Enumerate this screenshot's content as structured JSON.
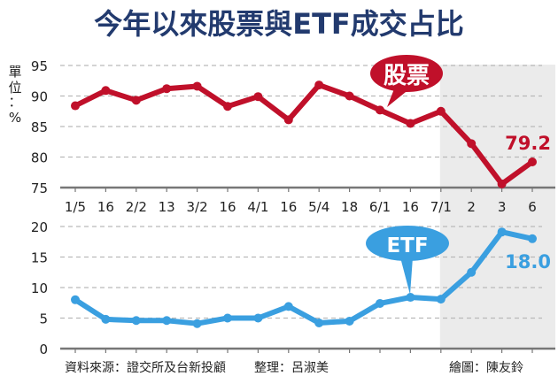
{
  "title": "今年以來股票與ETF成交占比",
  "unit": [
    "單",
    "位",
    "：",
    "%"
  ],
  "colors": {
    "stock": "#c0102a",
    "etf": "#3a9fe0",
    "title": "#223a6e",
    "shade": "#ebebeb",
    "grid": "#b9b9b9",
    "axis": "#777777"
  },
  "chart_data": [
    {
      "type": "line",
      "title": "股票",
      "ylabel": "單位：%",
      "ylim": [
        75,
        95
      ],
      "yticks": [
        75,
        80,
        85,
        90,
        95
      ],
      "categories": [
        "1/5",
        "16",
        "2/2",
        "13",
        "3/2",
        "16",
        "4/1",
        "16",
        "5/4",
        "18",
        "6/1",
        "16",
        "7/1",
        "2",
        "3",
        "6"
      ],
      "series": [
        {
          "name": "股票",
          "values": [
            88.4,
            90.9,
            89.3,
            91.2,
            91.6,
            88.3,
            89.9,
            86.1,
            91.8,
            90.0,
            87.7,
            85.5,
            87.5,
            82.2,
            75.6,
            79.2
          ]
        }
      ],
      "annotations": [
        {
          "text": "79.2",
          "at": "6"
        }
      ],
      "callout": "股票",
      "grid": true,
      "highlight_range": [
        "7/1",
        "6"
      ]
    },
    {
      "type": "line",
      "title": "ETF",
      "ylabel": "單位：%",
      "ylim": [
        0,
        20
      ],
      "yticks": [
        0,
        5,
        10,
        15,
        20
      ],
      "categories": [
        "1/5",
        "16",
        "2/2",
        "13",
        "3/2",
        "16",
        "4/1",
        "16",
        "5/4",
        "18",
        "6/1",
        "16",
        "7/1",
        "2",
        "3",
        "6"
      ],
      "series": [
        {
          "name": "ETF",
          "values": [
            8.0,
            4.8,
            4.6,
            4.6,
            4.1,
            5.0,
            5.0,
            6.9,
            4.2,
            4.5,
            7.4,
            8.4,
            8.1,
            12.5,
            19.1,
            18.0
          ]
        }
      ],
      "annotations": [
        {
          "text": "18.0",
          "at": "6"
        }
      ],
      "callout": "ETF",
      "grid": true,
      "highlight_range": [
        "7/1",
        "6"
      ]
    }
  ],
  "footer": {
    "source": "資料來源：證交所及台新投顧",
    "editor": "整理：呂淑美",
    "graphics": "繪圖：陳友鈴"
  }
}
